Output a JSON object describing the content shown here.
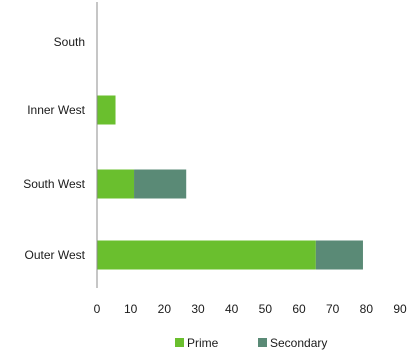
{
  "chart_data": {
    "type": "bar",
    "orientation": "horizontal",
    "stacked": true,
    "categories": [
      "South",
      "Inner West",
      "South West",
      "Outer West"
    ],
    "series": [
      {
        "name": "Prime",
        "color": "#6abf2e",
        "values": [
          0,
          5.5,
          11,
          65
        ]
      },
      {
        "name": "Secondary",
        "color": "#5a8a76",
        "values": [
          0,
          0,
          15.5,
          14
        ]
      }
    ],
    "x_ticks": [
      "0",
      "10",
      "20",
      "30",
      "40",
      "50",
      "60",
      "70",
      "80",
      "90"
    ],
    "xlim": [
      0,
      90
    ],
    "grid": false,
    "legend_position": "bottom"
  }
}
